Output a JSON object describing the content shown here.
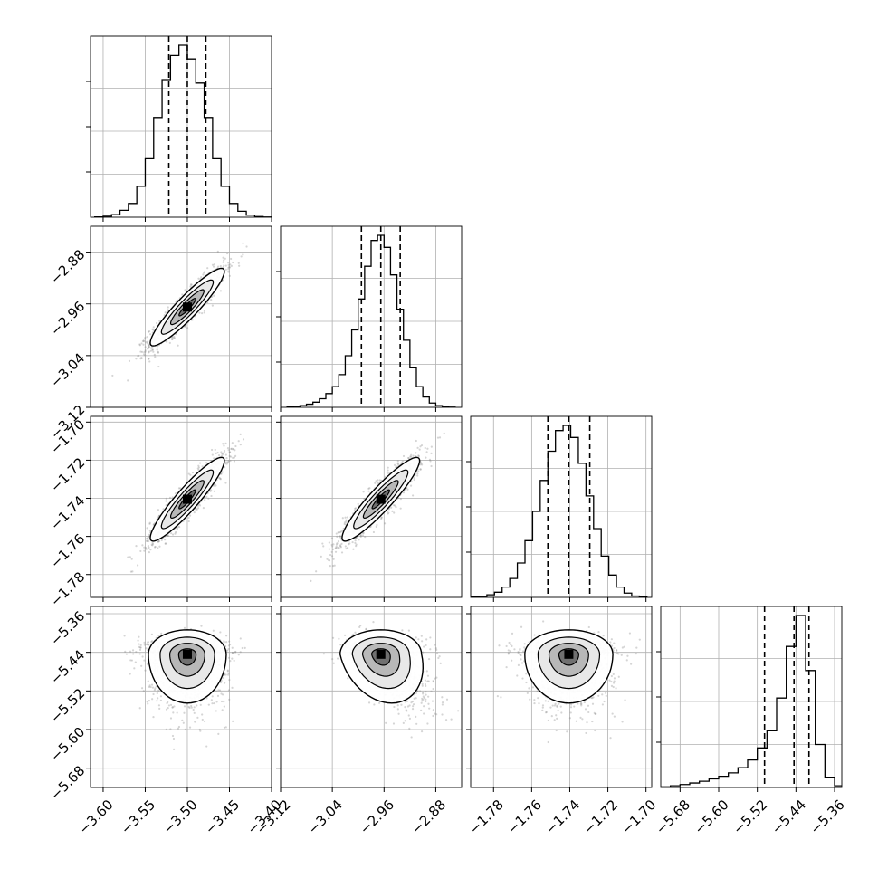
{
  "chart_data": {
    "type": "corner",
    "grid": true,
    "parameters": [
      {
        "range": [
          -3.615,
          -3.4
        ],
        "ticks": [
          -3.6,
          -3.55,
          -3.5,
          -3.45,
          -3.4
        ],
        "tick_labels": [
          "−3.60",
          "−3.55",
          "−3.50",
          "−3.45",
          "−3.40"
        ],
        "quantiles": [
          -3.522,
          -3.5,
          -3.478
        ],
        "hist_x": [
          -3.605,
          -3.595,
          -3.585,
          -3.575,
          -3.565,
          -3.555,
          -3.545,
          -3.535,
          -3.525,
          -3.515,
          -3.505,
          -3.495,
          -3.485,
          -3.475,
          -3.465,
          -3.455,
          -3.445,
          -3.435,
          -3.425,
          -3.415,
          -3.405
        ],
        "hist_y": [
          0.002,
          0.006,
          0.015,
          0.04,
          0.08,
          0.18,
          0.34,
          0.58,
          0.8,
          0.94,
          1.0,
          0.92,
          0.78,
          0.58,
          0.34,
          0.18,
          0.08,
          0.035,
          0.012,
          0.004,
          0.001
        ],
        "hist_yticks": [
          0.25,
          0.5,
          0.75
        ]
      },
      {
        "range": [
          -3.12,
          -2.84
        ],
        "ticks": [
          -3.12,
          -3.04,
          -2.96,
          -2.88
        ],
        "tick_labels": [
          "−3.12",
          "−3.04",
          "−2.96",
          "−2.88"
        ],
        "quantiles": [
          -2.995,
          -2.965,
          -2.935
        ],
        "hist_x": [
          -3.105,
          -3.095,
          -3.085,
          -3.075,
          -3.065,
          -3.055,
          -3.045,
          -3.035,
          -3.025,
          -3.015,
          -3.005,
          -2.995,
          -2.985,
          -2.975,
          -2.965,
          -2.955,
          -2.945,
          -2.935,
          -2.925,
          -2.915,
          -2.905,
          -2.895,
          -2.885,
          -2.875,
          -2.865,
          -2.855
        ],
        "hist_y": [
          0.002,
          0.005,
          0.01,
          0.018,
          0.03,
          0.05,
          0.08,
          0.12,
          0.19,
          0.3,
          0.45,
          0.63,
          0.82,
          0.97,
          1.0,
          0.93,
          0.77,
          0.57,
          0.39,
          0.23,
          0.12,
          0.06,
          0.025,
          0.01,
          0.004,
          0.001
        ],
        "hist_yticks": [
          0.25,
          0.5,
          0.75
        ]
      },
      {
        "range": [
          -1.792,
          -1.697
        ],
        "ticks": [
          -1.78,
          -1.76,
          -1.74,
          -1.72,
          -1.7
        ],
        "tick_labels": [
          "−1.78",
          "−1.76",
          "−1.74",
          "−1.72",
          "−1.70"
        ],
        "quantiles": [
          -1.7515,
          -1.7405,
          -1.7295
        ],
        "hist_x": [
          -1.7895,
          -1.7855,
          -1.7815,
          -1.7775,
          -1.7735,
          -1.7695,
          -1.7655,
          -1.7615,
          -1.7575,
          -1.7535,
          -1.7495,
          -1.7455,
          -1.7415,
          -1.7375,
          -1.7335,
          -1.7295,
          -1.7255,
          -1.7215,
          -1.7175,
          -1.7135,
          -1.7095,
          -1.7055,
          -1.7015
        ],
        "hist_y": [
          0.002,
          0.006,
          0.015,
          0.03,
          0.06,
          0.11,
          0.2,
          0.33,
          0.5,
          0.68,
          0.85,
          0.97,
          1.0,
          0.93,
          0.78,
          0.59,
          0.4,
          0.24,
          0.13,
          0.06,
          0.025,
          0.008,
          0.002
        ],
        "hist_yticks": [
          0.25,
          0.5,
          0.75
        ]
      },
      {
        "range": [
          -5.72,
          -5.345
        ],
        "ticks": [
          -5.68,
          -5.6,
          -5.52,
          -5.44,
          -5.36
        ],
        "tick_labels": [
          "−5.68",
          "−5.60",
          "−5.52",
          "−5.44",
          "−5.36"
        ],
        "quantiles": [
          -5.505,
          -5.444,
          -5.413
        ],
        "hist_x": [
          -5.71,
          -5.69,
          -5.67,
          -5.65,
          -5.63,
          -5.61,
          -5.59,
          -5.57,
          -5.55,
          -5.53,
          -5.51,
          -5.49,
          -5.47,
          -5.45,
          -5.43,
          -5.41,
          -5.39,
          -5.37,
          -5.35
        ],
        "hist_y": [
          0.004,
          0.01,
          0.017,
          0.026,
          0.036,
          0.05,
          0.065,
          0.085,
          0.115,
          0.16,
          0.23,
          0.33,
          0.52,
          0.82,
          1.0,
          0.68,
          0.25,
          0.06,
          0.01
        ],
        "hist_yticks": [
          0.25,
          0.5,
          0.75
        ]
      }
    ]
  }
}
